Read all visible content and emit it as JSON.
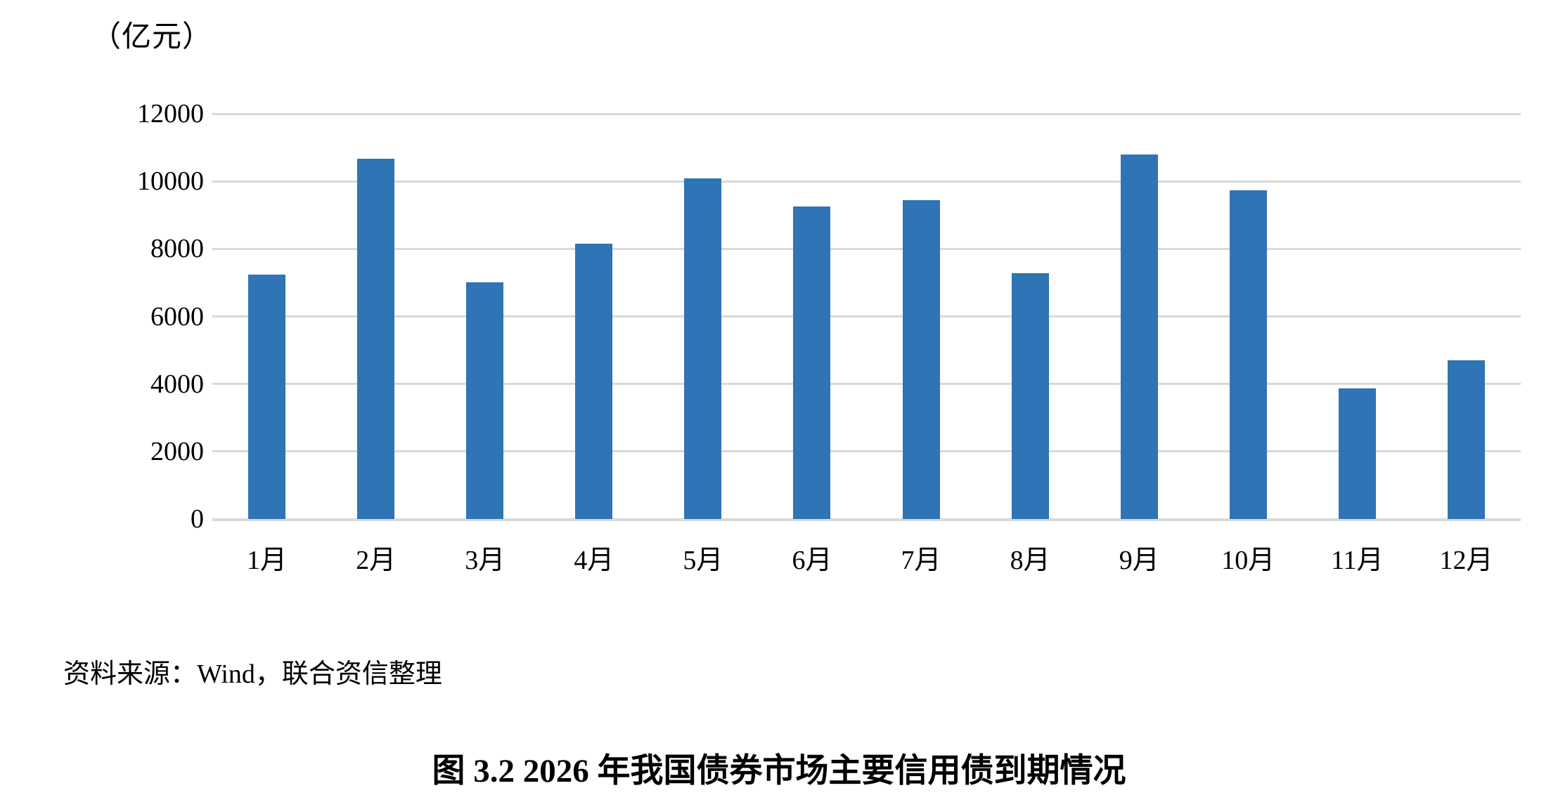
{
  "chart_data": {
    "type": "bar",
    "title": "图 3.2  2026 年我国债券市场主要信用债到期情况",
    "unit_label": "（亿元）",
    "source_note": "资料来源：Wind，联合资信整理",
    "categories": [
      "1月",
      "2月",
      "3月",
      "4月",
      "5月",
      "6月",
      "7月",
      "8月",
      "9月",
      "10月",
      "11月",
      "12月"
    ],
    "values": [
      7240,
      10670,
      7000,
      8160,
      10090,
      9250,
      9440,
      7270,
      10790,
      9730,
      3870,
      4700
    ],
    "ylabel": "",
    "xlabel": "",
    "ylim": [
      0,
      12000
    ],
    "yticks": [
      0,
      2000,
      4000,
      6000,
      8000,
      10000,
      12000
    ],
    "grid": true,
    "legend": "none",
    "bar_color": "#2F74B5",
    "gridline_color": "#D9D9D9",
    "text_color": "#000000"
  }
}
